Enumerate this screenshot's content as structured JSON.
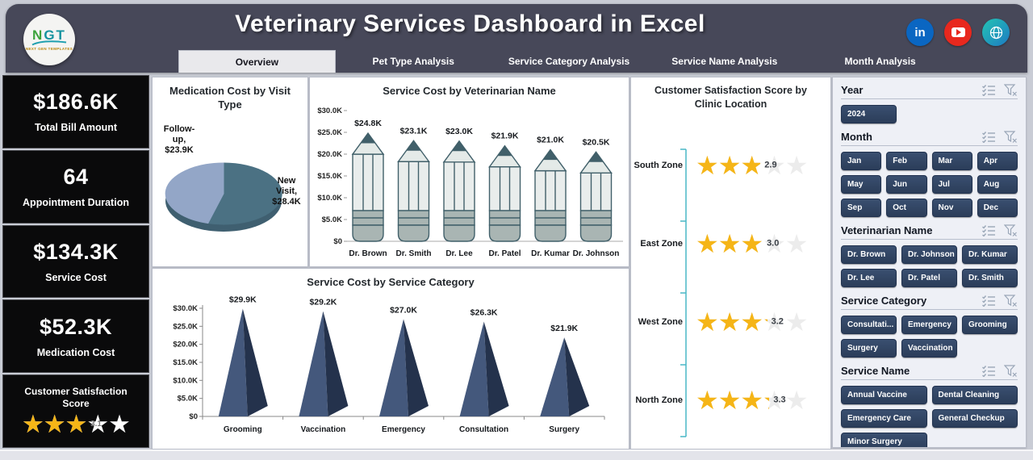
{
  "header": {
    "title": "Veterinary Services Dashboard in Excel",
    "logo": {
      "text": "NGT",
      "tagline": "NEXT GEN TEMPLATES"
    },
    "tabs": [
      {
        "label": "Overview",
        "active": true
      },
      {
        "label": "Pet Type Analysis",
        "active": false
      },
      {
        "label": "Service Category Analysis",
        "active": false
      },
      {
        "label": "Service Name Analysis",
        "active": false
      },
      {
        "label": "Month Analysis",
        "active": false
      }
    ],
    "social": [
      "linkedin",
      "youtube",
      "website"
    ]
  },
  "kpis": [
    {
      "value": "$186.6K",
      "label": "Total Bill Amount"
    },
    {
      "value": "64",
      "label": "Appointment Duration"
    },
    {
      "value": "$134.3K",
      "label": "Service Cost"
    },
    {
      "value": "$52.3K",
      "label": "Medication Cost"
    }
  ],
  "satisfaction_kpi": {
    "label": "Customer Satisfaction Score",
    "score": 3.1,
    "max": 5
  },
  "chart_data": [
    {
      "id": "medication_cost_by_visit_type",
      "type": "pie",
      "title": "Medication Cost by Visit Type",
      "unit": "USD thousands",
      "slices": [
        {
          "label": "New Visit",
          "value": 28.4,
          "display": "New Visit, $28.4K",
          "color": "#4b7183"
        },
        {
          "label": "Follow-up",
          "value": 23.9,
          "display": "Follow-up, $23.9K",
          "color": "#93a6c7"
        }
      ]
    },
    {
      "id": "service_cost_by_veterinarian",
      "type": "bar",
      "style": "pencil",
      "title": "Service Cost by Veterinarian Name",
      "unit": "USD thousands",
      "categories": [
        "Dr. Brown",
        "Dr. Smith",
        "Dr. Lee",
        "Dr. Patel",
        "Dr. Kumar",
        "Dr. Johnson"
      ],
      "values": [
        24.8,
        23.1,
        23.0,
        21.9,
        21.0,
        20.5
      ],
      "value_labels": [
        "$24.8K",
        "$23.1K",
        "$23.0K",
        "$21.9K",
        "$21.0K",
        "$20.5K"
      ],
      "ylim": [
        0,
        30
      ],
      "yticks": [
        "$0",
        "$5.0K",
        "$10.0K",
        "$15.0K",
        "$20.0K",
        "$25.0K",
        "$30.0K"
      ]
    },
    {
      "id": "service_cost_by_service_category",
      "type": "bar",
      "style": "cone",
      "title": "Service Cost by Service Category",
      "unit": "USD thousands",
      "categories": [
        "Grooming",
        "Vaccination",
        "Emergency",
        "Consultation",
        "Surgery"
      ],
      "values": [
        29.9,
        29.2,
        27.0,
        26.3,
        21.9
      ],
      "value_labels": [
        "$29.9K",
        "$29.2K",
        "$27.0K",
        "$26.3K",
        "$21.9K"
      ],
      "ylim": [
        0,
        30
      ],
      "yticks": [
        "$0",
        "$5.0K",
        "$10.0K",
        "$15.0K",
        "$20.0K",
        "$25.0K",
        "$30.0K"
      ]
    },
    {
      "id": "customer_satisfaction_by_clinic_location",
      "type": "rating",
      "title": "Customer Satisfaction Score by Clinic Location",
      "categories": [
        "South Zone",
        "East Zone",
        "West Zone",
        "North Zone"
      ],
      "values": [
        2.9,
        3.0,
        3.2,
        3.3
      ],
      "max": 5
    }
  ],
  "slicers": [
    {
      "title": "Year",
      "cols": 3,
      "items": [
        "2024"
      ]
    },
    {
      "title": "Month",
      "cols": 4,
      "items": [
        "Jan",
        "Feb",
        "Mar",
        "Apr",
        "May",
        "Jun",
        "Jul",
        "Aug",
        "Sep",
        "Oct",
        "Nov",
        "Dec"
      ]
    },
    {
      "title": "Veterinarian Name",
      "cols": 3,
      "items": [
        "Dr. Brown",
        "Dr. Johnson",
        "Dr. Kumar",
        "Dr. Lee",
        "Dr. Patel",
        "Dr. Smith"
      ]
    },
    {
      "title": "Service Category",
      "cols": 3,
      "items": [
        "Consultati...",
        "Emergency",
        "Grooming",
        "Surgery",
        "Vaccination"
      ]
    },
    {
      "title": "Service Name",
      "cols": 2,
      "items": [
        "Annual Vaccine",
        "Dental Cleaning",
        "Emergency Care",
        "General Checkup",
        "Minor Surgery"
      ]
    }
  ],
  "colors": {
    "header_bg": "#474859",
    "kpi_bg": "#0a0a0b",
    "star_gold": "#f5b517",
    "slicer_button": "#2f4361",
    "axis_teal": "#49b7c6",
    "cone_light": "#44587c",
    "cone_dark": "#24324c",
    "pencil_outline": "#41606a"
  }
}
